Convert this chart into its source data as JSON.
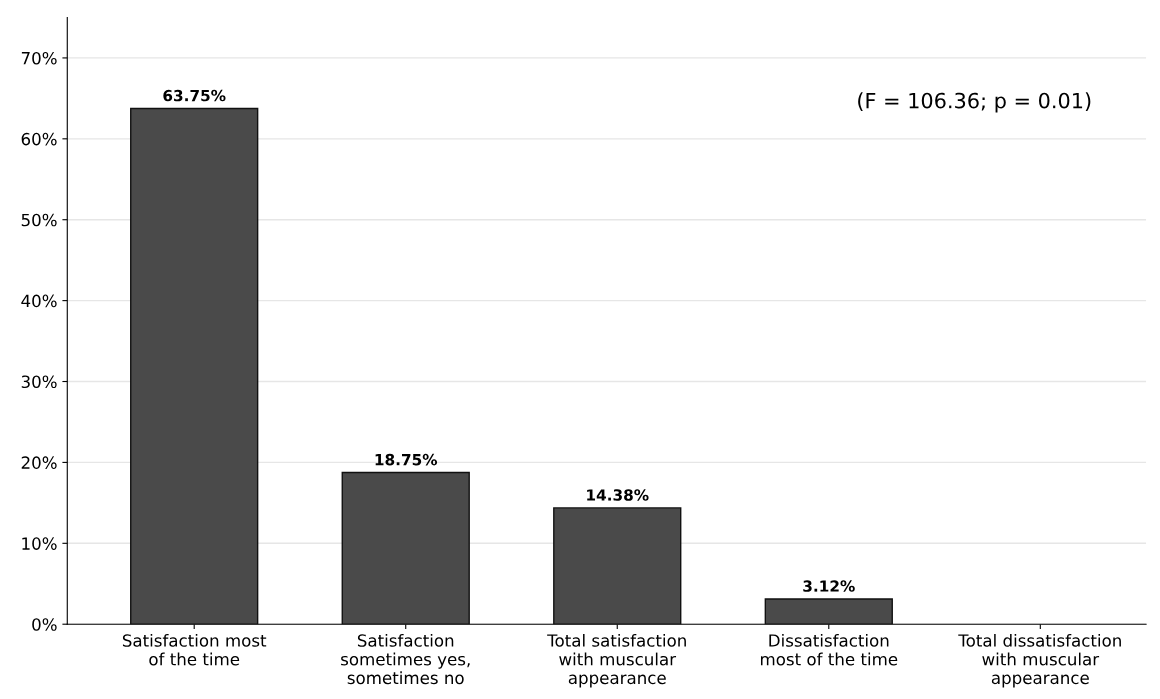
{
  "chart_data": {
    "type": "bar",
    "categories": [
      "Satisfaction most\nof the time",
      "Satisfaction\nsometimes yes,\nsometimes no",
      "Total satisfaction\nwith muscular\nappearance",
      "Dissatisfaction\nmost of the time",
      "Total dissatisfaction\nwith muscular\nappearance"
    ],
    "values": [
      63.75,
      18.75,
      14.38,
      3.12,
      0
    ],
    "value_labels": [
      "63.75%",
      "18.75%",
      "14.38%",
      "3.12%",
      null
    ],
    "color": "#4a4a4a",
    "ylim": [
      0,
      75
    ],
    "yticks": [
      {
        "value": 0,
        "label": "0%"
      },
      {
        "value": 10,
        "label": "10%"
      },
      {
        "value": 20,
        "label": "20%"
      },
      {
        "value": 30,
        "label": "30%"
      },
      {
        "value": 40,
        "label": "40%"
      },
      {
        "value": 50,
        "label": "50%"
      },
      {
        "value": 60,
        "label": "60%"
      },
      {
        "value": 70,
        "label": "70%"
      }
    ],
    "grid": "y",
    "annotations": [
      "(F = 106.36; p = 0.01)"
    ]
  }
}
